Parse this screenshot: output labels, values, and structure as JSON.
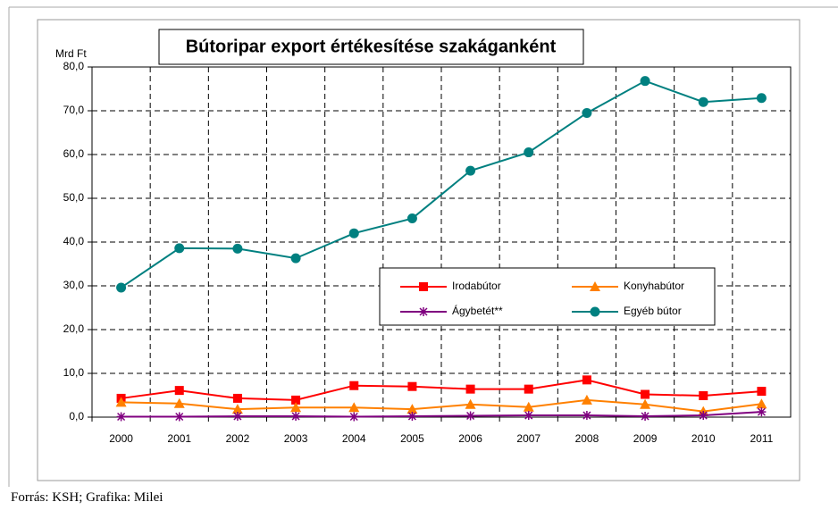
{
  "chart_data": {
    "type": "line",
    "title": "Bútoripar export értékesítése szakáganként",
    "ylabel": "Mrd Ft",
    "categories": [
      "2000",
      "2001",
      "2002",
      "2003",
      "2004",
      "2005",
      "2006",
      "2007",
      "2008",
      "2009",
      "2010",
      "2011"
    ],
    "series": [
      {
        "name": "Irodabútor",
        "color": "#ff0000",
        "marker": "square",
        "values": [
          4.3,
          6.1,
          4.3,
          3.9,
          7.2,
          7.0,
          6.4,
          6.4,
          8.5,
          5.2,
          4.9,
          5.9
        ]
      },
      {
        "name": "Konyhabútor",
        "color": "#ff8000",
        "marker": "triangle",
        "values": [
          3.4,
          3.1,
          1.8,
          2.2,
          2.2,
          1.8,
          2.9,
          2.3,
          3.9,
          2.9,
          1.3,
          3.0
        ]
      },
      {
        "name": "Ágybetét**",
        "color": "#800080",
        "marker": "star",
        "values": [
          0.1,
          0.1,
          0.2,
          0.2,
          0.1,
          0.2,
          0.3,
          0.4,
          0.4,
          0.2,
          0.4,
          1.2
        ]
      },
      {
        "name": "Egyéb bútor",
        "color": "#008080",
        "marker": "circle",
        "values": [
          29.6,
          38.6,
          38.5,
          36.3,
          42.0,
          45.4,
          56.3,
          60.5,
          69.5,
          76.8,
          72.0,
          72.9
        ]
      }
    ],
    "ylim": [
      0,
      80
    ],
    "yticks": [
      {
        "value": 0,
        "label": "0,0"
      },
      {
        "value": 10,
        "label": "10,0"
      },
      {
        "value": 20,
        "label": "20,0"
      },
      {
        "value": 30,
        "label": "30,0"
      },
      {
        "value": 40,
        "label": "40,0"
      },
      {
        "value": 50,
        "label": "50,0"
      },
      {
        "value": 60,
        "label": "60,0"
      },
      {
        "value": 70,
        "label": "70,0"
      },
      {
        "value": 80,
        "label": "80,0"
      }
    ],
    "grid": true
  },
  "source": "Forrás: KSH; Grafika: Milei"
}
